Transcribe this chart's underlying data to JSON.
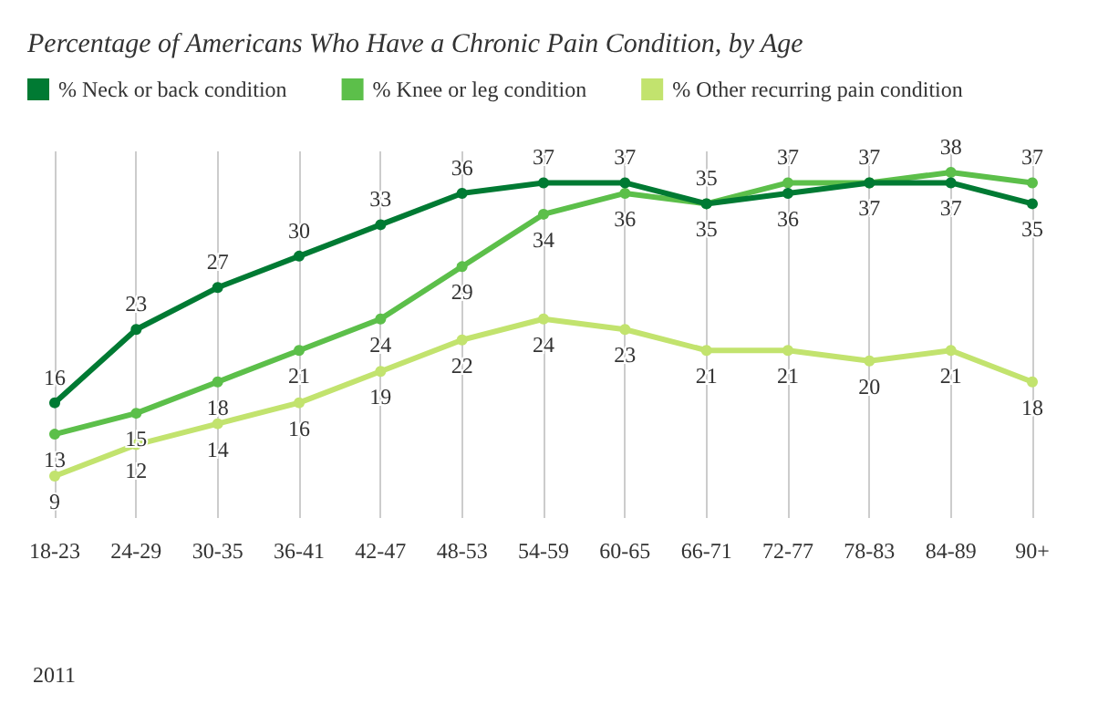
{
  "chart_data": {
    "type": "line",
    "title": "Percentage of Americans Who Have a Chronic Pain Condition, by Age",
    "categories": [
      "18-23",
      "24-29",
      "30-35",
      "36-41",
      "42-47",
      "48-53",
      "54-59",
      "60-65",
      "66-71",
      "72-77",
      "78-83",
      "84-89",
      "90+"
    ],
    "series": [
      {
        "name": "% Neck or back condition",
        "color": "#007a33",
        "values": [
          16,
          23,
          27,
          30,
          33,
          36,
          37,
          37,
          35,
          36,
          37,
          37,
          35
        ]
      },
      {
        "name": "% Knee or leg condition",
        "color": "#5cbf4a",
        "values": [
          13,
          15,
          18,
          21,
          24,
          29,
          34,
          36,
          35,
          37,
          37,
          38,
          37
        ]
      },
      {
        "name": "% Other recurring pain condition",
        "color": "#c2e36e",
        "values": [
          9,
          12,
          14,
          16,
          19,
          22,
          24,
          23,
          21,
          21,
          20,
          21,
          18
        ]
      }
    ],
    "data_labels": true,
    "grid": "x",
    "legend": "top left",
    "marker": "circle",
    "line_style": "solid",
    "annotations": [
      "2011"
    ]
  }
}
